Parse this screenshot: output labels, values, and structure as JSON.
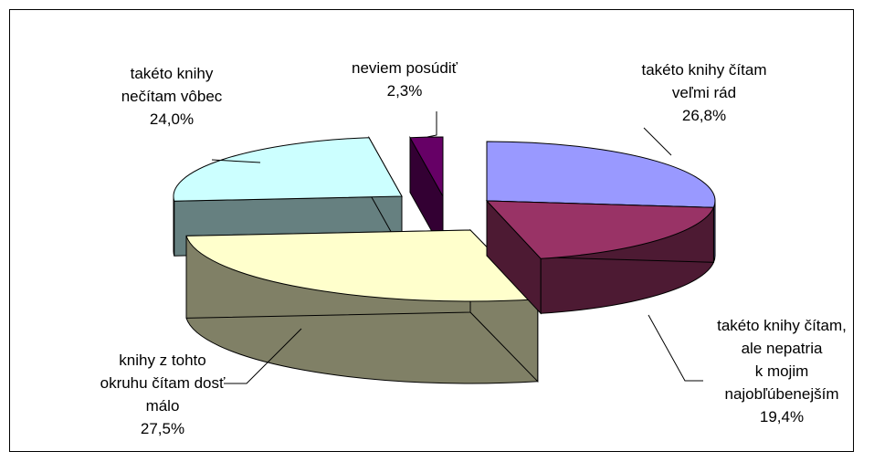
{
  "chart_data": {
    "type": "pie",
    "style": "3d-exploded",
    "title": "",
    "slices": [
      {
        "label": [
          "takéto knihy čítam",
          "veľmi rád"
        ],
        "value_text": "26,8%",
        "value": 26.8,
        "top_color": "#9999ff",
        "side_color": "#4d4d80"
      },
      {
        "label": [
          "takéto knihy čítam,",
          "ale nepatria",
          "k mojim",
          "najobľúbenejším"
        ],
        "value_text": "19,4%",
        "value": 19.4,
        "top_color": "#993366",
        "side_color": "#4d1a33"
      },
      {
        "label": [
          "knihy z tohto",
          "okruhu čítam dosť",
          "málo"
        ],
        "value_text": "27,5%",
        "value": 27.5,
        "top_color": "#ffffcc",
        "side_color": "#808066"
      },
      {
        "label": [
          "takéto knihy",
          "nečítam vôbec"
        ],
        "value_text": "24,0%",
        "value": 24.0,
        "top_color": "#ccffff",
        "side_color": "#668080"
      },
      {
        "label": [
          "neviem posúdiť"
        ],
        "value_text": "2,3%",
        "value": 2.3,
        "top_color": "#660066",
        "side_color": "#330033"
      }
    ]
  }
}
